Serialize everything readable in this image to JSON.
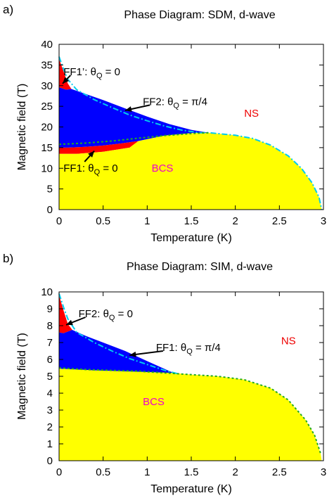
{
  "chart_data": [
    {
      "panel_label": "a)",
      "type": "area",
      "title": "Phase Diagram: SDM, d-wave",
      "xlabel": "Temperature (K)",
      "ylabel": "Magnetic field (T)",
      "xlim": [
        0,
        3.0
      ],
      "ylim": [
        0,
        40
      ],
      "xticks": [
        0,
        0.5,
        1,
        1.5,
        2,
        2.5,
        3
      ],
      "yticks": [
        0,
        5,
        10,
        15,
        20,
        25,
        30,
        35,
        40
      ],
      "xtick_labels": [
        "0",
        "0.5",
        "1",
        "1.5",
        "2",
        "2.5",
        "3"
      ],
      "ytick_labels": [
        "0",
        "5",
        "10",
        "15",
        "20",
        "25",
        "30",
        "35",
        "40"
      ],
      "colors": {
        "BCS": "#ffff00",
        "FF2": "#0000ff",
        "FF1": "#ff0000",
        "FF1prime": "#ff0000",
        "hc2_line": "#00ccee",
        "boundary_line": "#22aa22"
      },
      "regions": [
        {
          "name": "FF1'",
          "color": "#ff0000",
          "points": [
            [
              0.0,
              36.5
            ],
            [
              0.05,
              33.5
            ],
            [
              0.1,
              30.5
            ],
            [
              0.14,
              29.2
            ],
            [
              0.08,
              29.0
            ],
            [
              0.0,
              29.6
            ]
          ]
        },
        {
          "name": "FF2",
          "color": "#0000ff",
          "points": [
            [
              0.0,
              29.6
            ],
            [
              0.08,
              29.0
            ],
            [
              0.14,
              29.2
            ],
            [
              0.25,
              28.4
            ],
            [
              0.5,
              26.5
            ],
            [
              0.75,
              24.5
            ],
            [
              1.0,
              22.5
            ],
            [
              1.25,
              20.7
            ],
            [
              1.5,
              19.3
            ],
            [
              1.7,
              18.6
            ],
            [
              1.5,
              18.5
            ],
            [
              1.2,
              17.9
            ],
            [
              0.9,
              16.6
            ],
            [
              0.7,
              16.0
            ],
            [
              0.5,
              15.5
            ],
            [
              0.3,
              15.2
            ],
            [
              0.1,
              15.0
            ],
            [
              0.0,
              15.0
            ]
          ]
        },
        {
          "name": "FF1",
          "color": "#ff0000",
          "points": [
            [
              0.0,
              15.0
            ],
            [
              0.1,
              15.0
            ],
            [
              0.3,
              15.2
            ],
            [
              0.5,
              15.5
            ],
            [
              0.7,
              16.0
            ],
            [
              0.9,
              16.6
            ],
            [
              0.8,
              15.0
            ],
            [
              0.5,
              14.0
            ],
            [
              0.2,
              13.5
            ],
            [
              0.0,
              13.5
            ]
          ]
        },
        {
          "name": "BCS",
          "color": "#ffff00",
          "points": [
            [
              0.0,
              0
            ],
            [
              0.0,
              13.5
            ],
            [
              0.2,
              13.5
            ],
            [
              0.5,
              14.0
            ],
            [
              0.8,
              15.0
            ],
            [
              0.9,
              16.6
            ],
            [
              1.2,
              17.9
            ],
            [
              1.5,
              18.5
            ],
            [
              1.7,
              18.6
            ],
            [
              2.0,
              18.0
            ],
            [
              2.2,
              17.2
            ],
            [
              2.4,
              15.6
            ],
            [
              2.6,
              13.0
            ],
            [
              2.75,
              10.0
            ],
            [
              2.87,
              6.5
            ],
            [
              2.95,
              3.0
            ],
            [
              2.98,
              0
            ]
          ]
        }
      ],
      "lines": [
        {
          "name": "hc2",
          "color": "#00ccee",
          "dash": "8,3,2,3",
          "points": [
            [
              0.0,
              37.0
            ],
            [
              0.05,
              34.0
            ],
            [
              0.1,
              31.5
            ],
            [
              0.2,
              29.0
            ],
            [
              0.4,
              26.6
            ],
            [
              0.6,
              24.7
            ],
            [
              0.8,
              22.9
            ],
            [
              1.0,
              21.5
            ],
            [
              1.2,
              20.2
            ],
            [
              1.4,
              19.2
            ],
            [
              1.6,
              18.6
            ],
            [
              1.7,
              18.6
            ],
            [
              2.0,
              18.0
            ],
            [
              2.2,
              17.2
            ],
            [
              2.4,
              15.6
            ],
            [
              2.6,
              13.0
            ],
            [
              2.75,
              10.0
            ],
            [
              2.87,
              6.5
            ],
            [
              2.95,
              3.0
            ],
            [
              2.98,
              0
            ]
          ]
        },
        {
          "name": "boundary",
          "color": "#22aa22",
          "dash": "3,3",
          "points": [
            [
              0.0,
              15.8
            ],
            [
              0.3,
              16.1
            ],
            [
              0.6,
              16.6
            ],
            [
              0.9,
              17.3
            ],
            [
              1.2,
              17.9
            ],
            [
              1.5,
              18.4
            ],
            [
              1.7,
              18.6
            ]
          ]
        }
      ],
      "annotations": [
        {
          "text_parts": [
            "FF1’: θ",
            "Q",
            " = 0"
          ],
          "x": 0.05,
          "y": 32.5,
          "arrow_to": [
            0.04,
            30.5
          ],
          "color": "#000000"
        },
        {
          "text_parts": [
            "FF2: θ",
            "Q",
            " = π/4"
          ],
          "x": 0.95,
          "y": 25.3,
          "arrow_to": [
            0.75,
            24.0
          ],
          "color": "#000000"
        },
        {
          "text_parts": [
            "FF1: θ",
            "Q",
            " = 0"
          ],
          "x": 0.05,
          "y": 9.2,
          "arrow_to": [
            0.4,
            14.2
          ],
          "color": "#000000"
        },
        {
          "text_parts": [
            "NS",
            "",
            ""
          ],
          "x": 2.1,
          "y": 22.5,
          "color": "#ee0000"
        },
        {
          "text_parts": [
            "BCS",
            "",
            ""
          ],
          "x": 1.05,
          "y": 9.2,
          "color": "#ee00cc"
        }
      ]
    },
    {
      "panel_label": "b)",
      "type": "area",
      "title": "Phase Diagram: SIM, d-wave",
      "xlabel": "Temperature (K)",
      "ylabel": "Magnetic field (T)",
      "xlim": [
        0,
        3.0
      ],
      "ylim": [
        0,
        10
      ],
      "xticks": [
        0,
        0.5,
        1,
        1.5,
        2,
        2.5,
        3
      ],
      "yticks": [
        0,
        1,
        2,
        3,
        4,
        5,
        6,
        7,
        8,
        9,
        10
      ],
      "xtick_labels": [
        "0",
        "0.5",
        "1",
        "1.5",
        "2",
        "2.5",
        "3"
      ],
      "ytick_labels": [
        "0",
        "1",
        "2",
        "3",
        "4",
        "5",
        "6",
        "7",
        "8",
        "9",
        "10"
      ],
      "colors": {
        "BCS": "#ffff00",
        "FF1": "#0000ff",
        "FF2": "#ff0000",
        "hc2_line": "#00ccee",
        "boundary_line": "#22aa22"
      },
      "regions": [
        {
          "name": "FF2",
          "color": "#ff0000",
          "points": [
            [
              0.0,
              9.8
            ],
            [
              0.05,
              8.9
            ],
            [
              0.1,
              8.1
            ],
            [
              0.15,
              7.75
            ],
            [
              0.05,
              7.55
            ],
            [
              0.0,
              7.6
            ]
          ]
        },
        {
          "name": "FF1",
          "color": "#0000ff",
          "points": [
            [
              0.0,
              7.6
            ],
            [
              0.05,
              7.55
            ],
            [
              0.15,
              7.75
            ],
            [
              0.3,
              7.4
            ],
            [
              0.5,
              7.0
            ],
            [
              0.75,
              6.5
            ],
            [
              1.0,
              5.9
            ],
            [
              1.3,
              5.2
            ],
            [
              1.0,
              5.25
            ],
            [
              0.7,
              5.3
            ],
            [
              0.4,
              5.35
            ],
            [
              0.2,
              5.4
            ],
            [
              0.0,
              5.45
            ]
          ]
        },
        {
          "name": "BCS",
          "color": "#ffff00",
          "points": [
            [
              0.0,
              0
            ],
            [
              0.0,
              5.45
            ],
            [
              0.2,
              5.4
            ],
            [
              0.4,
              5.35
            ],
            [
              0.7,
              5.3
            ],
            [
              1.0,
              5.25
            ],
            [
              1.3,
              5.2
            ],
            [
              1.5,
              5.1
            ],
            [
              1.8,
              5.0
            ],
            [
              2.1,
              4.8
            ],
            [
              2.4,
              4.3
            ],
            [
              2.6,
              3.6
            ],
            [
              2.8,
              2.4
            ],
            [
              2.9,
              1.5
            ],
            [
              2.97,
              0.4
            ],
            [
              2.98,
              0
            ]
          ]
        }
      ],
      "lines": [
        {
          "name": "hc2",
          "color": "#00ccee",
          "dash": "8,3,2,3",
          "points": [
            [
              0.0,
              9.9
            ],
            [
              0.05,
              9.1
            ],
            [
              0.1,
              8.4
            ],
            [
              0.2,
              7.6
            ],
            [
              0.4,
              7.0
            ],
            [
              0.6,
              6.5
            ],
            [
              0.8,
              6.05
            ],
            [
              1.0,
              5.7
            ],
            [
              1.2,
              5.35
            ],
            [
              1.35,
              5.15
            ]
          ]
        },
        {
          "name": "boundary",
          "color": "#22aa22",
          "dash": "3,3",
          "points": [
            [
              0.0,
              5.5
            ],
            [
              0.3,
              5.4
            ],
            [
              0.6,
              5.35
            ],
            [
              0.9,
              5.3
            ],
            [
              1.2,
              5.2
            ],
            [
              1.5,
              5.1
            ],
            [
              1.8,
              5.0
            ],
            [
              2.1,
              4.8
            ],
            [
              2.4,
              4.3
            ],
            [
              2.6,
              3.6
            ],
            [
              2.8,
              2.4
            ],
            [
              2.9,
              1.5
            ],
            [
              2.97,
              0.4
            ]
          ]
        }
      ],
      "annotations": [
        {
          "text_parts": [
            "FF2: θ",
            "Q",
            " = 0"
          ],
          "x": 0.22,
          "y": 8.5,
          "arrow_to": [
            0.08,
            8.05
          ],
          "color": "#000000"
        },
        {
          "text_parts": [
            "FF1: θ",
            "Q",
            " = π/4"
          ],
          "x": 1.1,
          "y": 6.5,
          "arrow_to": [
            0.8,
            6.25
          ],
          "color": "#000000"
        },
        {
          "text_parts": [
            "NS",
            "",
            ""
          ],
          "x": 2.52,
          "y": 6.9,
          "color": "#ee0000"
        },
        {
          "text_parts": [
            "BCS",
            "",
            ""
          ],
          "x": 0.95,
          "y": 3.3,
          "color": "#ee00cc"
        }
      ]
    }
  ]
}
